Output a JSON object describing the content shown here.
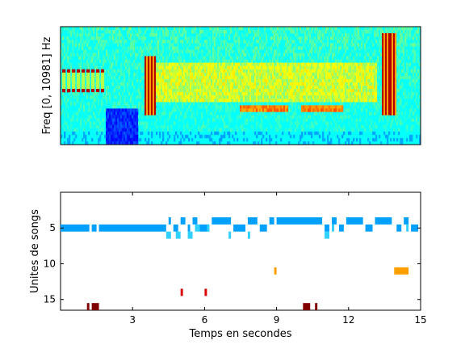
{
  "chart_data": [
    {
      "type": "heatmap",
      "ylabel": "Freq [0, 10981] Hz",
      "x_range_s": [
        0,
        15
      ],
      "colormap": "jet",
      "bands": [
        {
          "type": "harmonic-stack",
          "t": [
            0.1,
            1.9
          ],
          "n": 9,
          "rows": [
            0.36,
            0.56
          ],
          "intensity": 0.95
        },
        {
          "type": "dark-block",
          "t": [
            1.9,
            3.2
          ],
          "rows": [
            0.7,
            1.0
          ],
          "intensity": 0.05
        },
        {
          "type": "vertical-burst",
          "t": [
            3.5,
            4.0
          ],
          "rows": [
            0.25,
            0.75
          ],
          "intensity": 0.95
        },
        {
          "type": "broadband",
          "t": [
            4.0,
            13.2
          ],
          "rows": [
            0.3,
            0.65
          ],
          "intensity": 0.65
        },
        {
          "type": "hum",
          "t": [
            7.5,
            9.5
          ],
          "rows": [
            0.66,
            0.72
          ],
          "intensity": 0.7
        },
        {
          "type": "hum",
          "t": [
            10.0,
            11.8
          ],
          "rows": [
            0.66,
            0.72
          ],
          "intensity": 0.7
        },
        {
          "type": "vertical-burst",
          "t": [
            13.4,
            14.0
          ],
          "rows": [
            0.05,
            0.75
          ],
          "intensity": 0.95
        }
      ]
    },
    {
      "type": "scatter",
      "xlabel": "Temps en secondes",
      "ylabel": "Unites de songs",
      "xlim": [
        0,
        15
      ],
      "ylim": [
        16.5,
        0
      ],
      "xticks": [
        "3",
        "6",
        "9",
        "12",
        "15"
      ],
      "yticks": [
        "5",
        "10",
        "15"
      ],
      "series": [
        {
          "color": "#00a0ff",
          "segments": [
            [
              0,
              1.2,
              5
            ],
            [
              1.3,
              1.5,
              5
            ],
            [
              1.6,
              4.4,
              5
            ],
            [
              4.5,
              4.6,
              4
            ],
            [
              4.7,
              4.9,
              5
            ],
            [
              5.0,
              5.2,
              4
            ],
            [
              5.3,
              5.4,
              5
            ],
            [
              5.5,
              5.7,
              4
            ],
            [
              5.8,
              6.2,
              5
            ],
            [
              6.3,
              7.1,
              4
            ],
            [
              7.2,
              7.7,
              5
            ],
            [
              7.8,
              8.2,
              4
            ],
            [
              8.3,
              8.6,
              5
            ],
            [
              8.7,
              8.9,
              4
            ],
            [
              9.0,
              10.9,
              4
            ],
            [
              11.0,
              11.2,
              5
            ],
            [
              11.3,
              11.5,
              4
            ],
            [
              11.6,
              11.8,
              5
            ],
            [
              11.9,
              12.6,
              4
            ],
            [
              12.7,
              13.0,
              5
            ],
            [
              13.1,
              13.8,
              4
            ],
            [
              14.0,
              14.2,
              5
            ],
            [
              14.3,
              14.5,
              4
            ],
            [
              14.6,
              14.9,
              5
            ]
          ]
        },
        {
          "color": "#30d0ff",
          "segments": [
            [
              4.4,
              4.6,
              6
            ],
            [
              4.8,
              5.0,
              6
            ],
            [
              5.3,
              5.5,
              6
            ],
            [
              5.6,
              5.8,
              5
            ],
            [
              6.1,
              6.2,
              5
            ],
            [
              7.0,
              7.1,
              6
            ],
            [
              7.8,
              7.9,
              6
            ],
            [
              11.0,
              11.2,
              6
            ],
            [
              11.3,
              11.4,
              5
            ],
            [
              14.4,
              14.5,
              5
            ]
          ]
        },
        {
          "color": "#ffa000",
          "segments": [
            [
              8.9,
              9.0,
              11
            ],
            [
              13.9,
              14.5,
              11
            ]
          ]
        },
        {
          "color": "#dd0000",
          "segments": [
            [
              5.0,
              5.1,
              14
            ],
            [
              6.0,
              6.1,
              14
            ]
          ]
        },
        {
          "color": "#800000",
          "segments": [
            [
              1.1,
              1.2,
              16
            ],
            [
              1.3,
              1.6,
              16
            ],
            [
              10.1,
              10.4,
              16
            ],
            [
              10.6,
              10.7,
              16
            ]
          ]
        }
      ]
    }
  ]
}
